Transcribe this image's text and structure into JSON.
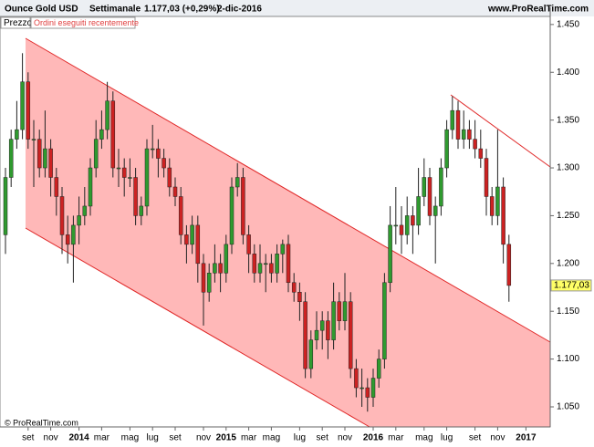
{
  "chart_data": {
    "type": "candlestick",
    "title": "Ounce Gold USD",
    "period": "Settimanale",
    "last_quote": "1.177,03 (+0,29%)",
    "date": "2-dic-2016",
    "site": "www.ProRealTime.com",
    "panel_label": "Prezzo",
    "panel_tab": "Ordini eseguiti recentemente",
    "copyright": "© ProRealTime.com",
    "last_price_label": "1.177,03",
    "up_color": "#2f9a2f",
    "down_color": "#cc2222",
    "categories": [
      null,
      null,
      null,
      null,
      "set",
      null,
      null,
      null,
      "nov",
      null,
      null,
      null,
      null,
      "2014",
      null,
      null,
      null,
      "mar",
      null,
      null,
      null,
      null,
      "mag",
      null,
      null,
      null,
      "lug",
      null,
      null,
      null,
      "set",
      null,
      null,
      null,
      null,
      "nov",
      null,
      null,
      null,
      "2015",
      null,
      null,
      null,
      "mar",
      null,
      null,
      null,
      "mag",
      null,
      null,
      null,
      null,
      "lug",
      null,
      null,
      null,
      "set",
      null,
      null,
      null,
      "nov",
      null,
      null,
      null,
      null,
      "2016",
      null,
      null,
      null,
      "mar",
      null,
      null,
      null,
      null,
      "mag",
      null,
      null,
      null,
      "lug",
      null,
      null,
      null,
      null,
      "set",
      null,
      null,
      null,
      "nov",
      null,
      null,
      null,
      null,
      "2017"
    ],
    "ohlc": [
      [
        1.23,
        1.3,
        1.21,
        1.29
      ],
      [
        1.29,
        1.34,
        1.28,
        1.33
      ],
      [
        1.33,
        1.37,
        1.32,
        1.34
      ],
      [
        1.34,
        1.42,
        1.33,
        1.39
      ],
      [
        1.39,
        1.4,
        1.32,
        1.33
      ],
      [
        1.33,
        1.35,
        1.28,
        1.33
      ],
      [
        1.33,
        1.34,
        1.29,
        1.3
      ],
      [
        1.3,
        1.36,
        1.29,
        1.32
      ],
      [
        1.32,
        1.33,
        1.27,
        1.29
      ],
      [
        1.29,
        1.3,
        1.25,
        1.27
      ],
      [
        1.27,
        1.28,
        1.21,
        1.23
      ],
      [
        1.23,
        1.25,
        1.2,
        1.22
      ],
      [
        1.22,
        1.25,
        1.18,
        1.24
      ],
      [
        1.24,
        1.27,
        1.22,
        1.25
      ],
      [
        1.25,
        1.28,
        1.24,
        1.26
      ],
      [
        1.26,
        1.31,
        1.25,
        1.3
      ],
      [
        1.3,
        1.35,
        1.29,
        1.33
      ],
      [
        1.33,
        1.36,
        1.32,
        1.34
      ],
      [
        1.34,
        1.39,
        1.33,
        1.37
      ],
      [
        1.37,
        1.38,
        1.29,
        1.3
      ],
      [
        1.3,
        1.32,
        1.28,
        1.3
      ],
      [
        1.3,
        1.31,
        1.27,
        1.29
      ],
      [
        1.29,
        1.31,
        1.28,
        1.29
      ],
      [
        1.29,
        1.3,
        1.24,
        1.25
      ],
      [
        1.25,
        1.27,
        1.24,
        1.26
      ],
      [
        1.26,
        1.33,
        1.25,
        1.32
      ],
      [
        1.32,
        1.345,
        1.31,
        1.32
      ],
      [
        1.32,
        1.33,
        1.29,
        1.31
      ],
      [
        1.31,
        1.32,
        1.29,
        1.3
      ],
      [
        1.3,
        1.31,
        1.27,
        1.28
      ],
      [
        1.28,
        1.29,
        1.26,
        1.27
      ],
      [
        1.27,
        1.28,
        1.22,
        1.23
      ],
      [
        1.23,
        1.24,
        1.2,
        1.22
      ],
      [
        1.22,
        1.25,
        1.21,
        1.24
      ],
      [
        1.24,
        1.25,
        1.18,
        1.2
      ],
      [
        1.2,
        1.21,
        1.135,
        1.17
      ],
      [
        1.17,
        1.2,
        1.16,
        1.19
      ],
      [
        1.19,
        1.22,
        1.18,
        1.2
      ],
      [
        1.2,
        1.21,
        1.17,
        1.19
      ],
      [
        1.19,
        1.23,
        1.18,
        1.22
      ],
      [
        1.22,
        1.29,
        1.21,
        1.28
      ],
      [
        1.28,
        1.305,
        1.27,
        1.29
      ],
      [
        1.29,
        1.3,
        1.22,
        1.23
      ],
      [
        1.23,
        1.24,
        1.19,
        1.21
      ],
      [
        1.21,
        1.22,
        1.18,
        1.19
      ],
      [
        1.19,
        1.22,
        1.18,
        1.2
      ],
      [
        1.2,
        1.21,
        1.17,
        1.2
      ],
      [
        1.2,
        1.21,
        1.18,
        1.19
      ],
      [
        1.19,
        1.22,
        1.18,
        1.21
      ],
      [
        1.21,
        1.225,
        1.19,
        1.22
      ],
      [
        1.22,
        1.23,
        1.17,
        1.18
      ],
      [
        1.18,
        1.19,
        1.16,
        1.17
      ],
      [
        1.17,
        1.18,
        1.14,
        1.16
      ],
      [
        1.16,
        1.17,
        1.08,
        1.09
      ],
      [
        1.09,
        1.13,
        1.08,
        1.12
      ],
      [
        1.12,
        1.15,
        1.11,
        1.13
      ],
      [
        1.13,
        1.15,
        1.11,
        1.14
      ],
      [
        1.14,
        1.15,
        1.1,
        1.12
      ],
      [
        1.12,
        1.18,
        1.11,
        1.16
      ],
      [
        1.16,
        1.17,
        1.13,
        1.14
      ],
      [
        1.14,
        1.19,
        1.13,
        1.16
      ],
      [
        1.16,
        1.17,
        1.08,
        1.09
      ],
      [
        1.09,
        1.1,
        1.06,
        1.07
      ],
      [
        1.07,
        1.09,
        1.05,
        1.07
      ],
      [
        1.07,
        1.08,
        1.045,
        1.06
      ],
      [
        1.06,
        1.09,
        1.05,
        1.08
      ],
      [
        1.08,
        1.11,
        1.07,
        1.1
      ],
      [
        1.1,
        1.19,
        1.09,
        1.18
      ],
      [
        1.18,
        1.26,
        1.17,
        1.24
      ],
      [
        1.24,
        1.28,
        1.22,
        1.24
      ],
      [
        1.24,
        1.26,
        1.21,
        1.23
      ],
      [
        1.23,
        1.27,
        1.22,
        1.25
      ],
      [
        1.25,
        1.26,
        1.21,
        1.24
      ],
      [
        1.24,
        1.3,
        1.23,
        1.27
      ],
      [
        1.27,
        1.31,
        1.26,
        1.29
      ],
      [
        1.29,
        1.3,
        1.24,
        1.25
      ],
      [
        1.25,
        1.27,
        1.2,
        1.26
      ],
      [
        1.26,
        1.31,
        1.25,
        1.3
      ],
      [
        1.3,
        1.35,
        1.29,
        1.34
      ],
      [
        1.34,
        1.375,
        1.33,
        1.36
      ],
      [
        1.36,
        1.37,
        1.32,
        1.33
      ],
      [
        1.33,
        1.36,
        1.32,
        1.34
      ],
      [
        1.34,
        1.35,
        1.32,
        1.33
      ],
      [
        1.33,
        1.35,
        1.31,
        1.32
      ],
      [
        1.32,
        1.34,
        1.3,
        1.31
      ],
      [
        1.31,
        1.32,
        1.25,
        1.27
      ],
      [
        1.27,
        1.28,
        1.24,
        1.25
      ],
      [
        1.25,
        1.34,
        1.24,
        1.28
      ],
      [
        1.28,
        1.29,
        1.2,
        1.22
      ],
      [
        1.22,
        1.23,
        1.16,
        1.177
      ],
      null,
      null,
      null
    ],
    "ylim": [
      1.029,
      1.468
    ],
    "yticks": [
      {
        "value": 1.05,
        "label": "1.050"
      },
      {
        "value": 1.1,
        "label": "1.100"
      },
      {
        "value": 1.15,
        "label": "1.150"
      },
      {
        "value": 1.2,
        "label": "1.200"
      },
      {
        "value": 1.25,
        "label": "1.250"
      },
      {
        "value": 1.3,
        "label": "1.300"
      },
      {
        "value": 1.35,
        "label": "1.350"
      },
      {
        "value": 1.4,
        "label": "1.400"
      },
      {
        "value": 1.45,
        "label": "1.450"
      }
    ]
  }
}
